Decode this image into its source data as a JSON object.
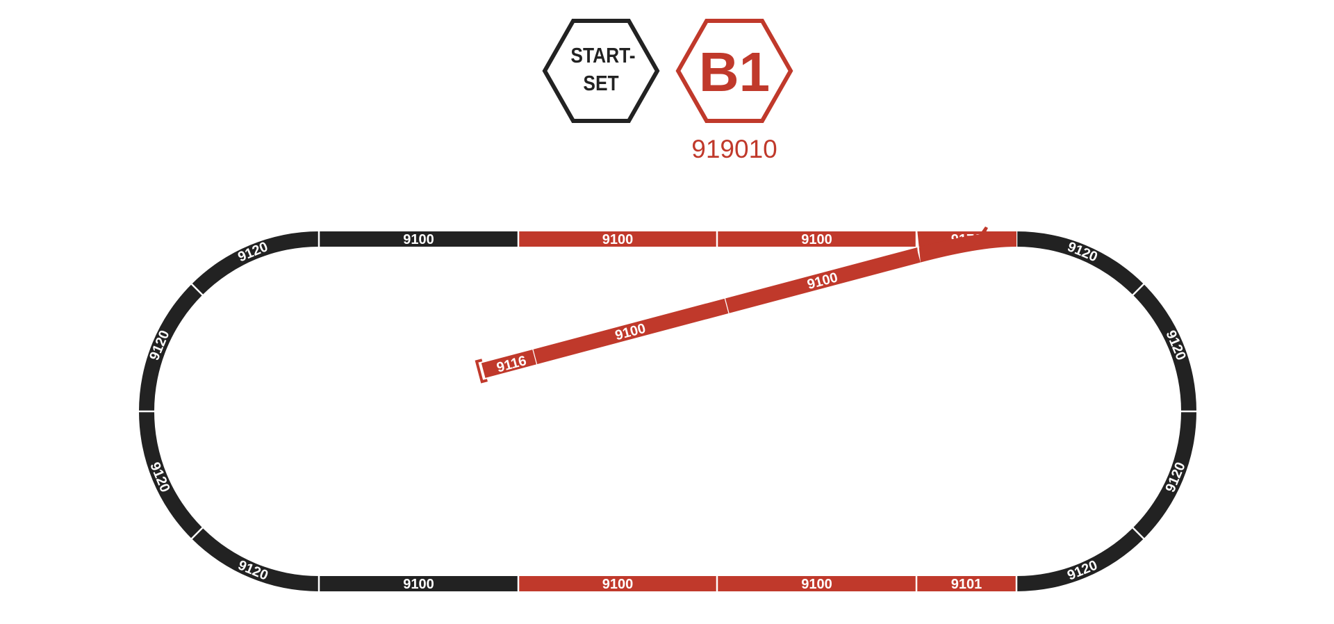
{
  "colors": {
    "base": "#222222",
    "extension": "#c0392b",
    "divider": "#ffffff"
  },
  "badges": {
    "start_set": {
      "line1": "START-",
      "line2": "SET"
    },
    "set": {
      "code": "B1",
      "article": "919010"
    }
  },
  "tracks": {
    "top": [
      {
        "label": "9100",
        "set": "base"
      },
      {
        "label": "9100",
        "set": "extension"
      },
      {
        "label": "9100",
        "set": "extension"
      },
      {
        "label": "9170",
        "set": "extension"
      }
    ],
    "bottom": [
      {
        "label": "9100",
        "set": "base"
      },
      {
        "label": "9100",
        "set": "extension"
      },
      {
        "label": "9100",
        "set": "extension"
      },
      {
        "label": "9101",
        "set": "extension"
      }
    ],
    "curves_left": [
      "9120",
      "9120",
      "9120",
      "9120"
    ],
    "curves_right": [
      "9120",
      "9120",
      "9120",
      "9120"
    ],
    "branch": [
      {
        "label": "9100"
      },
      {
        "label": "9100"
      },
      {
        "label": "9116"
      }
    ]
  }
}
